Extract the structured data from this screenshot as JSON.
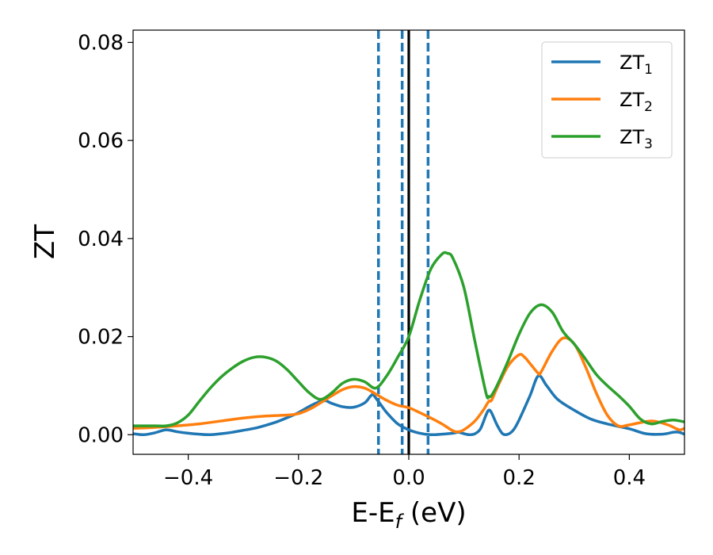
{
  "chart_data": {
    "type": "line",
    "xlabel": "E-E",
    "xlabel_sub": "f",
    "xlabel_unit": " (eV)",
    "ylabel": "ZT",
    "xlim": [
      -0.5,
      0.5
    ],
    "ylim": [
      -0.004,
      0.0825
    ],
    "xticks": [
      -0.4,
      -0.2,
      0.0,
      0.2,
      0.4
    ],
    "xtick_labels": [
      "−0.4",
      "−0.2",
      "0.0",
      "0.2",
      "0.4"
    ],
    "yticks": [
      0.0,
      0.02,
      0.04,
      0.06,
      0.08
    ],
    "ytick_labels": [
      "0.00",
      "0.02",
      "0.04",
      "0.06",
      "0.08"
    ],
    "legend_position": "top-right",
    "vertical_lines": [
      {
        "x": -0.055,
        "style": "dashed",
        "color": "#1f77b4"
      },
      {
        "x": -0.012,
        "style": "dashed",
        "color": "#1f77b4"
      },
      {
        "x": 0.0,
        "style": "solid",
        "color": "#000000"
      },
      {
        "x": 0.035,
        "style": "dashed",
        "color": "#1f77b4"
      }
    ],
    "series": [
      {
        "name": "ZT",
        "name_sub": "1",
        "color": "#1f77b4",
        "points": [
          [
            -0.5,
            0.0002
          ],
          [
            -0.48,
            0.0
          ],
          [
            -0.46,
            0.0004
          ],
          [
            -0.44,
            0.001
          ],
          [
            -0.42,
            0.0006
          ],
          [
            -0.4,
            0.0003
          ],
          [
            -0.38,
            0.0001
          ],
          [
            -0.36,
            0.0
          ],
          [
            -0.34,
            0.0002
          ],
          [
            -0.32,
            0.0005
          ],
          [
            -0.3,
            0.0009
          ],
          [
            -0.28,
            0.0013
          ],
          [
            -0.26,
            0.0019
          ],
          [
            -0.24,
            0.0026
          ],
          [
            -0.22,
            0.0035
          ],
          [
            -0.2,
            0.0045
          ],
          [
            -0.18,
            0.0058
          ],
          [
            -0.16,
            0.0068
          ],
          [
            -0.15,
            0.0069
          ],
          [
            -0.14,
            0.0064
          ],
          [
            -0.12,
            0.0057
          ],
          [
            -0.1,
            0.0056
          ],
          [
            -0.08,
            0.0065
          ],
          [
            -0.07,
            0.0078
          ],
          [
            -0.065,
            0.0082
          ],
          [
            -0.06,
            0.0075
          ],
          [
            -0.05,
            0.006
          ],
          [
            -0.04,
            0.0045
          ],
          [
            -0.02,
            0.0022
          ],
          [
            0.0,
            0.001
          ],
          [
            0.02,
            0.0003
          ],
          [
            0.04,
            0.0
          ],
          [
            0.06,
            0.0001
          ],
          [
            0.08,
            0.0003
          ],
          [
            0.09,
            0.0005
          ],
          [
            0.1,
            0.0002
          ],
          [
            0.11,
            0.0
          ],
          [
            0.12,
            0.0002
          ],
          [
            0.13,
            0.0012
          ],
          [
            0.14,
            0.004
          ],
          [
            0.145,
            0.005
          ],
          [
            0.15,
            0.0045
          ],
          [
            0.16,
            0.002
          ],
          [
            0.17,
            0.0002
          ],
          [
            0.18,
            0.0001
          ],
          [
            0.19,
            0.001
          ],
          [
            0.2,
            0.003
          ],
          [
            0.22,
            0.008
          ],
          [
            0.235,
            0.012
          ],
          [
            0.25,
            0.01
          ],
          [
            0.27,
            0.0072
          ],
          [
            0.3,
            0.005
          ],
          [
            0.33,
            0.0032
          ],
          [
            0.36,
            0.0022
          ],
          [
            0.4,
            0.0012
          ],
          [
            0.43,
            0.0002
          ],
          [
            0.46,
            0.0001
          ],
          [
            0.48,
            0.0005
          ],
          [
            0.49,
            0.0005
          ],
          [
            0.5,
            0.0001
          ]
        ]
      },
      {
        "name": "ZT",
        "name_sub": "2",
        "color": "#ff7f0e",
        "points": [
          [
            -0.5,
            0.0013
          ],
          [
            -0.46,
            0.0015
          ],
          [
            -0.42,
            0.0018
          ],
          [
            -0.38,
            0.0022
          ],
          [
            -0.34,
            0.0028
          ],
          [
            -0.3,
            0.0034
          ],
          [
            -0.26,
            0.0038
          ],
          [
            -0.22,
            0.004
          ],
          [
            -0.2,
            0.0043
          ],
          [
            -0.18,
            0.0052
          ],
          [
            -0.16,
            0.0065
          ],
          [
            -0.14,
            0.0079
          ],
          [
            -0.12,
            0.0092
          ],
          [
            -0.1,
            0.0098
          ],
          [
            -0.08,
            0.0095
          ],
          [
            -0.06,
            0.0083
          ],
          [
            -0.04,
            0.007
          ],
          [
            -0.02,
            0.006
          ],
          [
            0.0,
            0.0055
          ],
          [
            0.02,
            0.0045
          ],
          [
            0.04,
            0.0034
          ],
          [
            0.06,
            0.0022
          ],
          [
            0.08,
            0.0008
          ],
          [
            0.09,
            0.0006
          ],
          [
            0.1,
            0.001
          ],
          [
            0.12,
            0.0028
          ],
          [
            0.135,
            0.005
          ],
          [
            0.145,
            0.0068
          ],
          [
            0.15,
            0.007
          ],
          [
            0.16,
            0.0095
          ],
          [
            0.18,
            0.014
          ],
          [
            0.2,
            0.0163
          ],
          [
            0.21,
            0.0158
          ],
          [
            0.22,
            0.0145
          ],
          [
            0.235,
            0.0125
          ],
          [
            0.24,
            0.0128
          ],
          [
            0.26,
            0.017
          ],
          [
            0.28,
            0.0197
          ],
          [
            0.3,
            0.0185
          ],
          [
            0.32,
            0.014
          ],
          [
            0.34,
            0.0085
          ],
          [
            0.36,
            0.004
          ],
          [
            0.38,
            0.0018
          ],
          [
            0.4,
            0.002
          ],
          [
            0.44,
            0.0028
          ],
          [
            0.47,
            0.002
          ],
          [
            0.49,
            0.001
          ],
          [
            0.5,
            0.0013
          ]
        ]
      },
      {
        "name": "ZT",
        "name_sub": "3",
        "color": "#2ca02c",
        "points": [
          [
            -0.5,
            0.0018
          ],
          [
            -0.46,
            0.0018
          ],
          [
            -0.44,
            0.0018
          ],
          [
            -0.42,
            0.0024
          ],
          [
            -0.4,
            0.004
          ],
          [
            -0.38,
            0.0068
          ],
          [
            -0.36,
            0.0095
          ],
          [
            -0.34,
            0.0118
          ],
          [
            -0.32,
            0.0136
          ],
          [
            -0.3,
            0.015
          ],
          [
            -0.28,
            0.0158
          ],
          [
            -0.26,
            0.0158
          ],
          [
            -0.24,
            0.015
          ],
          [
            -0.22,
            0.0132
          ],
          [
            -0.2,
            0.0108
          ],
          [
            -0.18,
            0.0085
          ],
          [
            -0.16,
            0.0072
          ],
          [
            -0.14,
            0.0085
          ],
          [
            -0.12,
            0.0105
          ],
          [
            -0.1,
            0.0113
          ],
          [
            -0.08,
            0.0108
          ],
          [
            -0.06,
            0.0095
          ],
          [
            -0.04,
            0.012
          ],
          [
            -0.02,
            0.0158
          ],
          [
            0.0,
            0.02
          ],
          [
            0.02,
            0.0275
          ],
          [
            0.04,
            0.0338
          ],
          [
            0.06,
            0.0368
          ],
          [
            0.07,
            0.037
          ],
          [
            0.08,
            0.036
          ],
          [
            0.1,
            0.03
          ],
          [
            0.12,
            0.019
          ],
          [
            0.14,
            0.0085
          ],
          [
            0.145,
            0.0078
          ],
          [
            0.15,
            0.008
          ],
          [
            0.16,
            0.01
          ],
          [
            0.18,
            0.015
          ],
          [
            0.2,
            0.0205
          ],
          [
            0.22,
            0.0248
          ],
          [
            0.24,
            0.0265
          ],
          [
            0.26,
            0.025
          ],
          [
            0.28,
            0.021
          ],
          [
            0.3,
            0.0185
          ],
          [
            0.32,
            0.0155
          ],
          [
            0.34,
            0.0123
          ],
          [
            0.36,
            0.01
          ],
          [
            0.38,
            0.008
          ],
          [
            0.4,
            0.0058
          ],
          [
            0.42,
            0.0032
          ],
          [
            0.44,
            0.0022
          ],
          [
            0.46,
            0.0027
          ],
          [
            0.48,
            0.003
          ],
          [
            0.5,
            0.0026
          ]
        ]
      }
    ]
  }
}
